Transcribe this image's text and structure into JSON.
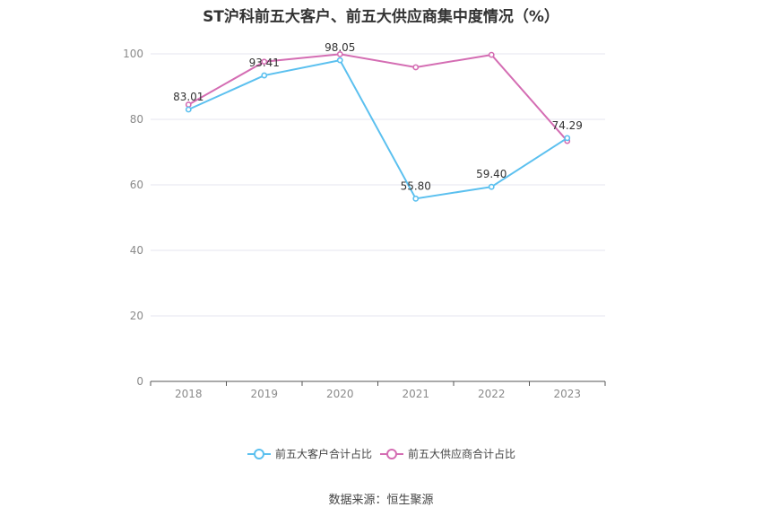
{
  "title": "ST沪科前五大客户、前五大供应商集中度情况（%）",
  "source": "数据来源：恒生聚源",
  "colors": {
    "customers": "#5bc0ef",
    "suppliers": "#d46db3",
    "grid": "#e6e6ef",
    "axis": "#555555"
  },
  "chart_data": {
    "type": "line",
    "categories": [
      "2018",
      "2019",
      "2020",
      "2021",
      "2022",
      "2023"
    ],
    "ylim": [
      0,
      100
    ],
    "yticks": [
      0,
      20,
      40,
      60,
      80,
      100
    ],
    "series": [
      {
        "name": "前五大客户合计占比",
        "values": [
          83.01,
          93.41,
          98.05,
          55.8,
          59.4,
          74.29
        ],
        "labels": [
          "83.01",
          "93.41",
          "98.05",
          "55.80",
          "59.40",
          "74.29"
        ]
      },
      {
        "name": "前五大供应商合计占比",
        "values": [
          84.5,
          97.6,
          99.9,
          95.9,
          99.7,
          73.4
        ]
      }
    ]
  }
}
